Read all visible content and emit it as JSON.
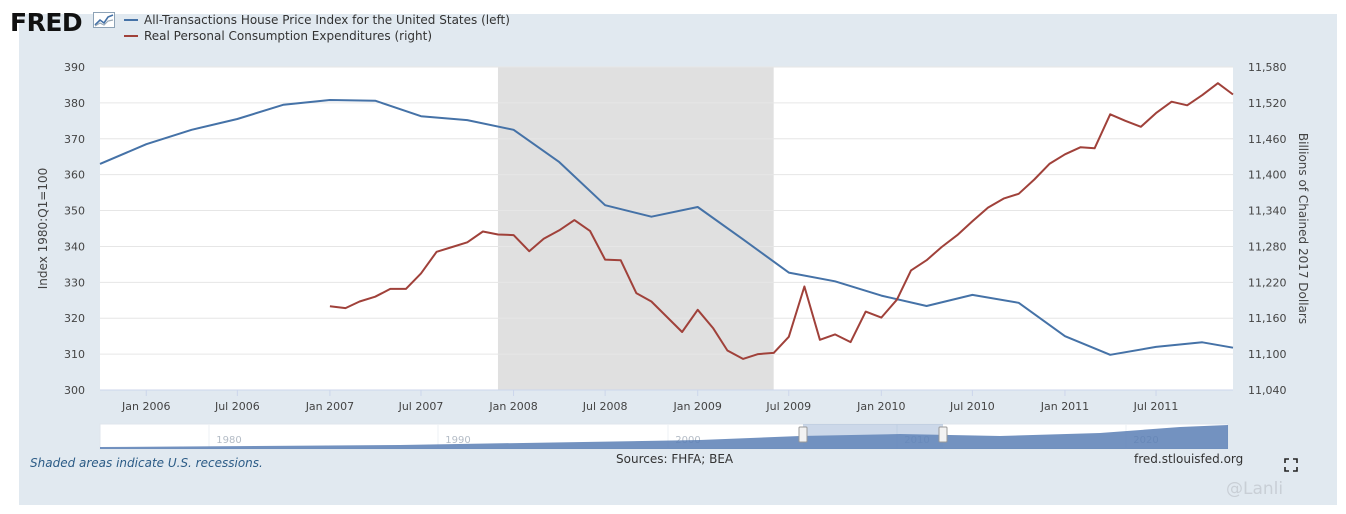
{
  "logo_text": "FRED",
  "colors": {
    "series1": "#4572a7",
    "series2": "#a0413a",
    "recession": "#e0e0e0",
    "frame": "#e1e9f0",
    "navigator": "#4a6fa5"
  },
  "footer": {
    "note": "Shaded areas indicate U.S. recessions.",
    "source": "Sources: FHFA; BEA",
    "site": "fred.stlouisfed.org"
  },
  "watermark": "@Lanli",
  "chart_data": {
    "type": "line",
    "title": "",
    "x_ticks": [
      "Jan 2006",
      "Jul 2006",
      "Jan 2007",
      "Jul 2007",
      "Jan 2008",
      "Jul 2008",
      "Jan 2009",
      "Jul 2009",
      "Jan 2010",
      "Jul 2010",
      "Jan 2011",
      "Jul 2011"
    ],
    "x_range": [
      "2005-10-01",
      "2011-12-01"
    ],
    "y_left": {
      "label": "Index 1980:Q1=100",
      "range": [
        300,
        390
      ],
      "ticks": [
        "300",
        "310",
        "320",
        "330",
        "340",
        "350",
        "360",
        "370",
        "380",
        "390"
      ]
    },
    "y_right": {
      "label": "Billions of Chained 2017 Dollars",
      "range": [
        11040,
        11580
      ],
      "ticks": [
        "11,040",
        "11,100",
        "11,160",
        "11,220",
        "11,280",
        "11,340",
        "11,400",
        "11,460",
        "11,520",
        "11,580"
      ]
    },
    "recessions": [
      [
        "2007-12-01",
        "2009-06-01"
      ]
    ],
    "grid": true,
    "series": [
      {
        "name": "All-Transactions House Price Index for the United States (left)",
        "axis": "left",
        "x": [
          "2005-10-01",
          "2006-01-01",
          "2006-04-01",
          "2006-07-01",
          "2006-10-01",
          "2007-01-01",
          "2007-04-01",
          "2007-07-01",
          "2007-10-01",
          "2008-01-01",
          "2008-04-01",
          "2008-07-01",
          "2008-10-01",
          "2009-01-01",
          "2009-04-01",
          "2009-07-01",
          "2009-10-01",
          "2010-01-01",
          "2010-04-01",
          "2010-07-01",
          "2010-10-01",
          "2011-01-01",
          "2011-04-01",
          "2011-07-01",
          "2011-10-01",
          "2011-12-01"
        ],
        "values": [
          363,
          368.5,
          372.5,
          375.5,
          379.5,
          380.8,
          380.6,
          376.3,
          375.2,
          372.5,
          363.5,
          351.5,
          348.3,
          351,
          342,
          332.7,
          330.3,
          326.3,
          323.4,
          326.5,
          324.3,
          315,
          309.8,
          312,
          313.3,
          311.8
        ]
      },
      {
        "name": "Real Personal Consumption Expenditures (right)",
        "axis": "right",
        "x": [
          "2007-01-01",
          "2007-02-01",
          "2007-03-01",
          "2007-04-01",
          "2007-05-01",
          "2007-06-01",
          "2007-07-01",
          "2007-08-01",
          "2007-09-01",
          "2007-10-01",
          "2007-11-01",
          "2007-12-01",
          "2008-01-01",
          "2008-02-01",
          "2008-03-01",
          "2008-04-01",
          "2008-05-01",
          "2008-06-01",
          "2008-07-01",
          "2008-08-01",
          "2008-09-01",
          "2008-10-01",
          "2008-11-01",
          "2008-12-01",
          "2009-01-01",
          "2009-02-01",
          "2009-03-01",
          "2009-04-01",
          "2009-05-01",
          "2009-06-01",
          "2009-07-01",
          "2009-08-01",
          "2009-09-01",
          "2009-10-01",
          "2009-11-01",
          "2009-12-01",
          "2010-01-01",
          "2010-02-01",
          "2010-03-01",
          "2010-04-01",
          "2010-05-01",
          "2010-06-01",
          "2010-07-01",
          "2010-08-01",
          "2010-09-01",
          "2010-10-01",
          "2010-11-01",
          "2010-12-01",
          "2011-01-01",
          "2011-02-01",
          "2011-03-01",
          "2011-04-01",
          "2011-05-01",
          "2011-06-01",
          "2011-07-01",
          "2011-08-01",
          "2011-09-01",
          "2011-10-01",
          "2011-11-01",
          "2011-12-01"
        ],
        "values": [
          11180,
          11177,
          11188,
          11196,
          11209,
          11209,
          11235,
          11271,
          11279,
          11287,
          11305,
          11300,
          11299,
          11272,
          11293,
          11307,
          11324,
          11306,
          11258,
          11257,
          11202,
          11188,
          11162,
          11137,
          11174,
          11143,
          11106,
          11092,
          11100,
          11102,
          11129,
          11213,
          11124,
          11133,
          11120,
          11171,
          11161,
          11191,
          11240,
          11257,
          11279,
          11299,
          11322,
          11345,
          11360,
          11368,
          11392,
          11418,
          11434,
          11446,
          11444,
          11501,
          11490,
          11480,
          11503,
          11522,
          11516,
          11533,
          11553,
          11534
        ]
      }
    ]
  }
}
